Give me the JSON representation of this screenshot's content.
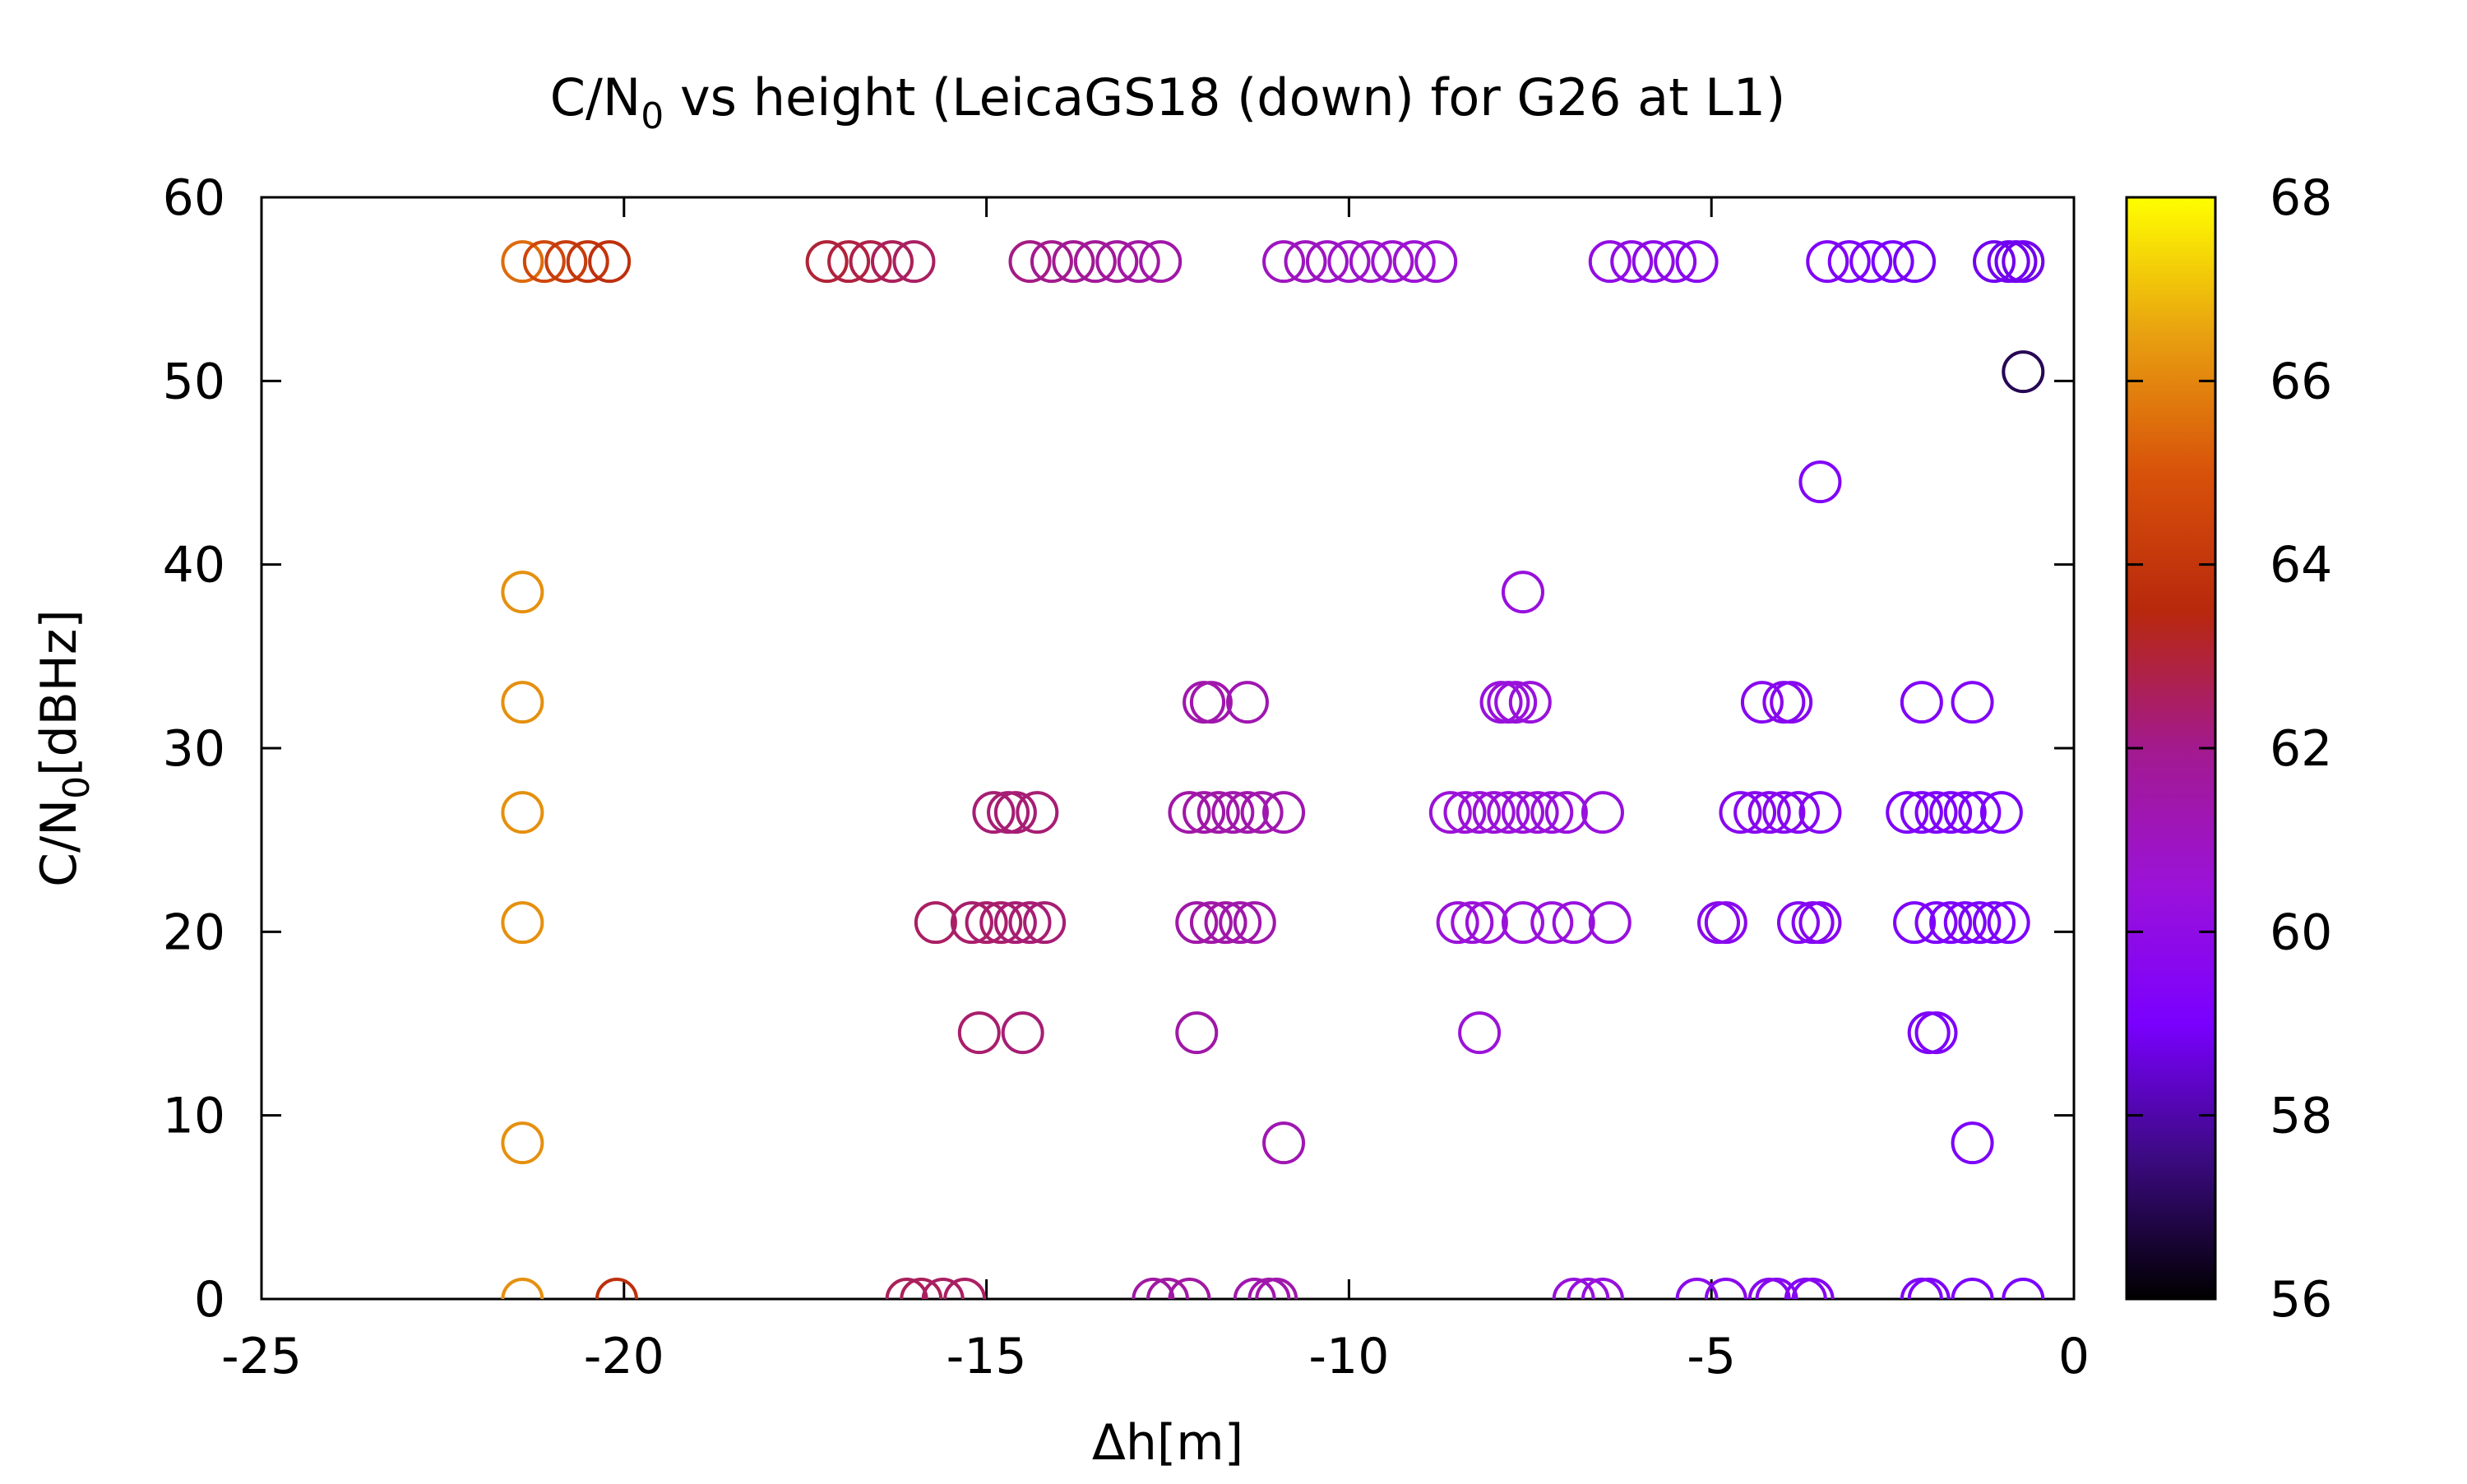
{
  "chart_data": {
    "type": "scatter",
    "title": {
      "base": "C/N",
      "sub": "0",
      "rest": " vs height (LeicaGS18 (down) for G26 at L1)"
    },
    "xlabel": "Δh[m]",
    "ylabel": {
      "base": "C/N",
      "sub": "0",
      "rest": "[dBHz]"
    },
    "xlim": [
      -25,
      0
    ],
    "ylim": [
      0,
      60
    ],
    "x_ticks": [
      "-25",
      "-20",
      "-15",
      "-10",
      "-5",
      "0"
    ],
    "x_tick_values": [
      -25,
      -20,
      -15,
      -10,
      -5,
      0
    ],
    "y_ticks": [
      "0",
      "10",
      "20",
      "30",
      "40",
      "50",
      "60"
    ],
    "y_tick_values": [
      0,
      10,
      20,
      30,
      40,
      50,
      60
    ],
    "grid": false,
    "marker": "open-circle",
    "colorbar": {
      "range": [
        56,
        68
      ],
      "ticks": [
        "56",
        "58",
        "60",
        "62",
        "64",
        "66",
        "68"
      ],
      "tick_values": [
        56,
        58,
        60,
        62,
        64,
        66,
        68
      ],
      "colormap": "black-purple-red-orange-yellow",
      "colors": [
        "#000000",
        "#3a0a7e",
        "#7a00ff",
        "#9b12d8",
        "#a31a8e",
        "#b8280c",
        "#d8520a",
        "#e8a010",
        "#ffff00"
      ]
    },
    "series": [
      {
        "points": [
          {
            "x": -21.4,
            "y": 56.5,
            "c": 65.5
          },
          {
            "x": -21.1,
            "y": 56.5,
            "c": 64.6
          },
          {
            "x": -20.8,
            "y": 56.5,
            "c": 64.2
          },
          {
            "x": -20.5,
            "y": 56.5,
            "c": 64.0
          },
          {
            "x": -20.2,
            "y": 56.5,
            "c": 63.8
          },
          {
            "x": -17.2,
            "y": 56.5,
            "c": 63.0
          },
          {
            "x": -16.9,
            "y": 56.5,
            "c": 62.9
          },
          {
            "x": -16.6,
            "y": 56.5,
            "c": 62.8
          },
          {
            "x": -16.3,
            "y": 56.5,
            "c": 62.6
          },
          {
            "x": -16.0,
            "y": 56.5,
            "c": 62.5
          },
          {
            "x": -14.4,
            "y": 56.5,
            "c": 62.1
          },
          {
            "x": -14.1,
            "y": 56.5,
            "c": 62.0
          },
          {
            "x": -13.8,
            "y": 56.5,
            "c": 61.9
          },
          {
            "x": -13.5,
            "y": 56.5,
            "c": 61.8
          },
          {
            "x": -13.2,
            "y": 56.5,
            "c": 61.7
          },
          {
            "x": -12.9,
            "y": 56.5,
            "c": 61.6
          },
          {
            "x": -12.6,
            "y": 56.5,
            "c": 61.5
          },
          {
            "x": -10.9,
            "y": 56.5,
            "c": 61.0
          },
          {
            "x": -10.6,
            "y": 56.5,
            "c": 61.0
          },
          {
            "x": -10.3,
            "y": 56.5,
            "c": 60.9
          },
          {
            "x": -10.0,
            "y": 56.5,
            "c": 60.8
          },
          {
            "x": -9.7,
            "y": 56.5,
            "c": 60.8
          },
          {
            "x": -9.4,
            "y": 56.5,
            "c": 60.7
          },
          {
            "x": -9.1,
            "y": 56.5,
            "c": 60.6
          },
          {
            "x": -8.8,
            "y": 56.5,
            "c": 60.6
          },
          {
            "x": -6.4,
            "y": 56.5,
            "c": 60.1
          },
          {
            "x": -6.1,
            "y": 56.5,
            "c": 60.0
          },
          {
            "x": -5.8,
            "y": 56.5,
            "c": 59.9
          },
          {
            "x": -5.5,
            "y": 56.5,
            "c": 59.8
          },
          {
            "x": -5.2,
            "y": 56.5,
            "c": 59.7
          },
          {
            "x": -3.4,
            "y": 56.5,
            "c": 59.3
          },
          {
            "x": -3.1,
            "y": 56.5,
            "c": 59.2
          },
          {
            "x": -2.8,
            "y": 56.5,
            "c": 59.1
          },
          {
            "x": -2.5,
            "y": 56.5,
            "c": 59.0
          },
          {
            "x": -2.2,
            "y": 56.5,
            "c": 58.9
          },
          {
            "x": -1.1,
            "y": 56.5,
            "c": 58.8
          },
          {
            "x": -0.9,
            "y": 56.5,
            "c": 58.8
          },
          {
            "x": -0.8,
            "y": 56.5,
            "c": 58.8
          },
          {
            "x": -0.7,
            "y": 56.5,
            "c": 58.8
          },
          {
            "x": -0.7,
            "y": 50.5,
            "c": 57.0
          },
          {
            "x": -3.5,
            "y": 44.5,
            "c": 59.3
          },
          {
            "x": -21.4,
            "y": 38.5,
            "c": 66.2
          },
          {
            "x": -21.4,
            "y": 32.5,
            "c": 66.2
          },
          {
            "x": -21.4,
            "y": 26.5,
            "c": 66.2
          },
          {
            "x": -21.4,
            "y": 20.5,
            "c": 66.2
          },
          {
            "x": -21.4,
            "y": 8.5,
            "c": 66.2
          },
          {
            "x": -21.4,
            "y": 0,
            "c": 66.2
          },
          {
            "x": -7.6,
            "y": 38.5,
            "c": 60.3
          },
          {
            "x": -12.0,
            "y": 32.5,
            "c": 61.4
          },
          {
            "x": -11.9,
            "y": 32.5,
            "c": 61.4
          },
          {
            "x": -11.4,
            "y": 32.5,
            "c": 61.3
          },
          {
            "x": -7.9,
            "y": 32.5,
            "c": 60.4
          },
          {
            "x": -7.8,
            "y": 32.5,
            "c": 60.4
          },
          {
            "x": -7.7,
            "y": 32.5,
            "c": 60.4
          },
          {
            "x": -7.5,
            "y": 32.5,
            "c": 60.4
          },
          {
            "x": -4.3,
            "y": 32.5,
            "c": 59.6
          },
          {
            "x": -4.0,
            "y": 32.5,
            "c": 59.6
          },
          {
            "x": -3.9,
            "y": 32.5,
            "c": 59.6
          },
          {
            "x": -2.1,
            "y": 32.5,
            "c": 59.3
          },
          {
            "x": -1.4,
            "y": 32.5,
            "c": 59.3
          },
          {
            "x": -14.9,
            "y": 26.5,
            "c": 62.3
          },
          {
            "x": -14.7,
            "y": 26.5,
            "c": 62.3
          },
          {
            "x": -14.6,
            "y": 26.5,
            "c": 62.3
          },
          {
            "x": -14.3,
            "y": 26.5,
            "c": 62.3
          },
          {
            "x": -12.2,
            "y": 26.5,
            "c": 61.5
          },
          {
            "x": -12.0,
            "y": 26.5,
            "c": 61.5
          },
          {
            "x": -11.8,
            "y": 26.5,
            "c": 61.5
          },
          {
            "x": -11.6,
            "y": 26.5,
            "c": 61.4
          },
          {
            "x": -11.4,
            "y": 26.5,
            "c": 61.4
          },
          {
            "x": -11.2,
            "y": 26.5,
            "c": 61.4
          },
          {
            "x": -10.9,
            "y": 26.5,
            "c": 61.3
          },
          {
            "x": -8.6,
            "y": 26.5,
            "c": 60.5
          },
          {
            "x": -8.4,
            "y": 26.5,
            "c": 60.5
          },
          {
            "x": -8.2,
            "y": 26.5,
            "c": 60.5
          },
          {
            "x": -8.0,
            "y": 26.5,
            "c": 60.5
          },
          {
            "x": -7.8,
            "y": 26.5,
            "c": 60.4
          },
          {
            "x": -7.6,
            "y": 26.5,
            "c": 60.4
          },
          {
            "x": -7.4,
            "y": 26.5,
            "c": 60.4
          },
          {
            "x": -7.2,
            "y": 26.5,
            "c": 60.4
          },
          {
            "x": -7.0,
            "y": 26.5,
            "c": 60.3
          },
          {
            "x": -6.5,
            "y": 26.5,
            "c": 60.3
          },
          {
            "x": -4.6,
            "y": 26.5,
            "c": 59.6
          },
          {
            "x": -4.4,
            "y": 26.5,
            "c": 59.6
          },
          {
            "x": -4.2,
            "y": 26.5,
            "c": 59.6
          },
          {
            "x": -4.0,
            "y": 26.5,
            "c": 59.6
          },
          {
            "x": -3.8,
            "y": 26.5,
            "c": 59.5
          },
          {
            "x": -3.5,
            "y": 26.5,
            "c": 59.5
          },
          {
            "x": -2.3,
            "y": 26.5,
            "c": 59.2
          },
          {
            "x": -2.1,
            "y": 26.5,
            "c": 59.2
          },
          {
            "x": -1.9,
            "y": 26.5,
            "c": 59.2
          },
          {
            "x": -1.7,
            "y": 26.5,
            "c": 59.2
          },
          {
            "x": -1.5,
            "y": 26.5,
            "c": 59.2
          },
          {
            "x": -1.3,
            "y": 26.5,
            "c": 59.1
          },
          {
            "x": -1.0,
            "y": 26.5,
            "c": 59.1
          },
          {
            "x": -15.7,
            "y": 20.5,
            "c": 62.5
          },
          {
            "x": -15.2,
            "y": 20.5,
            "c": 62.4
          },
          {
            "x": -15.0,
            "y": 20.5,
            "c": 62.4
          },
          {
            "x": -14.8,
            "y": 20.5,
            "c": 62.4
          },
          {
            "x": -14.6,
            "y": 20.5,
            "c": 62.3
          },
          {
            "x": -14.4,
            "y": 20.5,
            "c": 62.3
          },
          {
            "x": -14.2,
            "y": 20.5,
            "c": 62.3
          },
          {
            "x": -12.1,
            "y": 20.5,
            "c": 61.5
          },
          {
            "x": -11.9,
            "y": 20.5,
            "c": 61.5
          },
          {
            "x": -11.7,
            "y": 20.5,
            "c": 61.5
          },
          {
            "x": -11.5,
            "y": 20.5,
            "c": 61.4
          },
          {
            "x": -11.3,
            "y": 20.5,
            "c": 61.4
          },
          {
            "x": -8.5,
            "y": 20.5,
            "c": 60.5
          },
          {
            "x": -8.3,
            "y": 20.5,
            "c": 60.5
          },
          {
            "x": -8.1,
            "y": 20.5,
            "c": 60.5
          },
          {
            "x": -7.6,
            "y": 20.5,
            "c": 60.4
          },
          {
            "x": -7.2,
            "y": 20.5,
            "c": 60.4
          },
          {
            "x": -6.9,
            "y": 20.5,
            "c": 60.3
          },
          {
            "x": -6.4,
            "y": 20.5,
            "c": 60.3
          },
          {
            "x": -4.9,
            "y": 20.5,
            "c": 59.7
          },
          {
            "x": -4.8,
            "y": 20.5,
            "c": 59.7
          },
          {
            "x": -3.8,
            "y": 20.5,
            "c": 59.5
          },
          {
            "x": -3.6,
            "y": 20.5,
            "c": 59.5
          },
          {
            "x": -3.5,
            "y": 20.5,
            "c": 59.5
          },
          {
            "x": -2.2,
            "y": 20.5,
            "c": 59.2
          },
          {
            "x": -1.9,
            "y": 20.5,
            "c": 59.2
          },
          {
            "x": -1.7,
            "y": 20.5,
            "c": 59.2
          },
          {
            "x": -1.5,
            "y": 20.5,
            "c": 59.2
          },
          {
            "x": -1.3,
            "y": 20.5,
            "c": 59.1
          },
          {
            "x": -1.1,
            "y": 20.5,
            "c": 59.1
          },
          {
            "x": -0.9,
            "y": 20.5,
            "c": 59.1
          },
          {
            "x": -15.1,
            "y": 14.5,
            "c": 62.4
          },
          {
            "x": -14.5,
            "y": 14.5,
            "c": 62.3
          },
          {
            "x": -12.1,
            "y": 14.5,
            "c": 61.5
          },
          {
            "x": -8.2,
            "y": 14.5,
            "c": 60.5
          },
          {
            "x": -2.0,
            "y": 14.5,
            "c": 59.2
          },
          {
            "x": -1.9,
            "y": 14.5,
            "c": 59.2
          },
          {
            "x": -10.9,
            "y": 8.5,
            "c": 61.3
          },
          {
            "x": -1.4,
            "y": 8.5,
            "c": 59.1
          },
          {
            "x": -20.1,
            "y": 0,
            "c": 63.8
          },
          {
            "x": -16.1,
            "y": 0,
            "c": 62.6
          },
          {
            "x": -15.9,
            "y": 0,
            "c": 62.6
          },
          {
            "x": -15.6,
            "y": 0,
            "c": 62.5
          },
          {
            "x": -15.3,
            "y": 0,
            "c": 62.5
          },
          {
            "x": -12.7,
            "y": 0,
            "c": 61.6
          },
          {
            "x": -12.5,
            "y": 0,
            "c": 61.6
          },
          {
            "x": -12.2,
            "y": 0,
            "c": 61.6
          },
          {
            "x": -11.3,
            "y": 0,
            "c": 61.4
          },
          {
            "x": -11.1,
            "y": 0,
            "c": 61.4
          },
          {
            "x": -11.0,
            "y": 0,
            "c": 61.4
          },
          {
            "x": -6.9,
            "y": 0,
            "c": 60.3
          },
          {
            "x": -6.7,
            "y": 0,
            "c": 60.3
          },
          {
            "x": -6.5,
            "y": 0,
            "c": 60.3
          },
          {
            "x": -5.2,
            "y": 0,
            "c": 59.8
          },
          {
            "x": -4.8,
            "y": 0,
            "c": 59.7
          },
          {
            "x": -4.2,
            "y": 0,
            "c": 59.6
          },
          {
            "x": -4.1,
            "y": 0,
            "c": 59.6
          },
          {
            "x": -3.7,
            "y": 0,
            "c": 59.5
          },
          {
            "x": -3.6,
            "y": 0,
            "c": 59.5
          },
          {
            "x": -2.1,
            "y": 0,
            "c": 59.2
          },
          {
            "x": -2.0,
            "y": 0,
            "c": 59.2
          },
          {
            "x": -1.4,
            "y": 0,
            "c": 59.1
          },
          {
            "x": -0.7,
            "y": 0,
            "c": 59.0
          }
        ]
      }
    ]
  }
}
